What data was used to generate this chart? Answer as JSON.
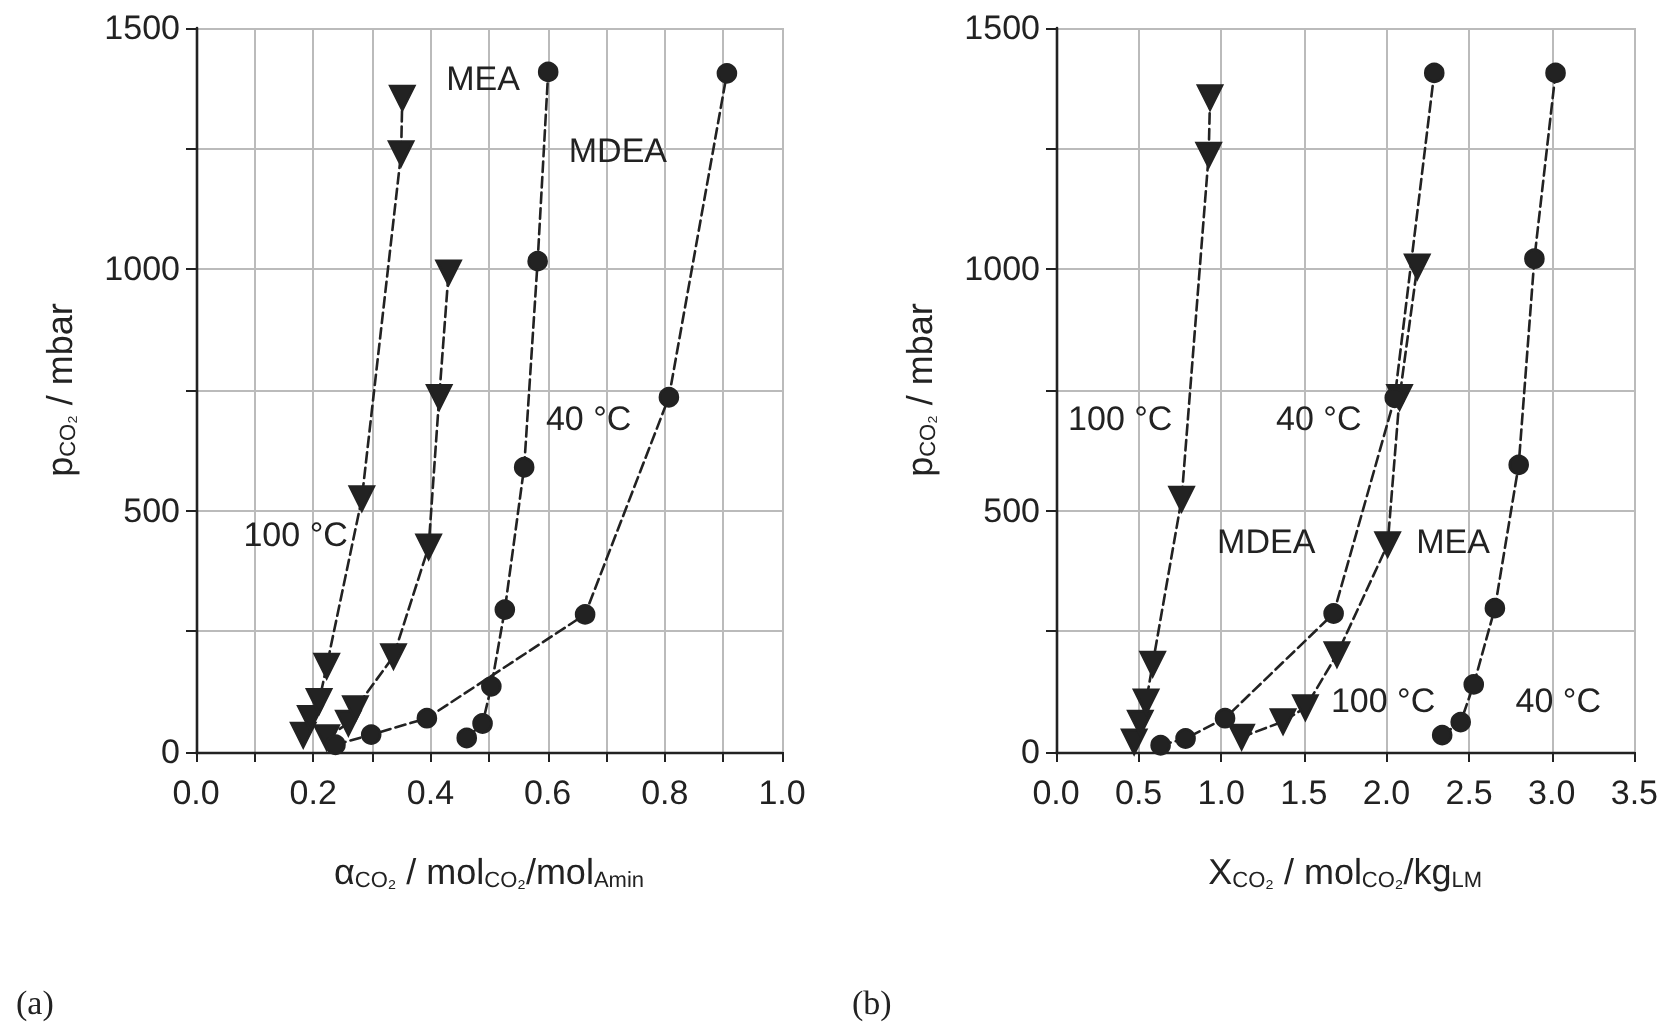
{
  "chart_data": [
    {
      "type": "line",
      "xlabel": "α$_{CO₂}$ / mol$_{CO₂}$/mol$_{Amin}$",
      "ylabel": "p$_{CO₂}$ / mbar",
      "line_style": "dashed",
      "grid": true,
      "xlim": [
        0,
        1
      ],
      "xticks": [
        {
          "value": 0,
          "label": "0.0"
        },
        {
          "value": 0.1,
          "label": null
        },
        {
          "value": 0.2,
          "label": "0.2"
        },
        {
          "value": 0.3,
          "label": null
        },
        {
          "value": 0.4,
          "label": "0.4"
        },
        {
          "value": 0.5,
          "label": null
        },
        {
          "value": 0.6,
          "label": "0.6"
        },
        {
          "value": 0.7,
          "label": null
        },
        {
          "value": 0.8,
          "label": "0.8"
        },
        {
          "value": 0.9,
          "label": null
        },
        {
          "value": 1,
          "label": "1.0"
        }
      ],
      "ylim": [
        0,
        1500
      ],
      "yticks": [
        0,
        {
          "value": 250,
          "label": null
        },
        500,
        {
          "value": 750,
          "label": null
        },
        1000,
        {
          "value": 1250,
          "label": null
        },
        1500
      ],
      "series": [
        {
          "color": "#222222",
          "marker": "triangle",
          "x": [
            0.183,
            0.195,
            0.21,
            0.223,
            0.283,
            0.35,
            0.352
          ],
          "values": [
            35,
            70,
            105,
            178,
            525,
            1240,
            1355
          ]
        },
        {
          "color": "#222222",
          "marker": "triangle",
          "x": [
            0.223,
            0.26,
            0.272,
            0.337,
            0.397,
            0.415,
            0.431
          ],
          "values": [
            30,
            60,
            90,
            198,
            425,
            735,
            993
          ]
        },
        {
          "color": "#222222",
          "marker": "circle",
          "x": [
            0.462,
            0.489,
            0.504,
            0.527,
            0.56,
            0.583,
            0.601
          ],
          "values": [
            29,
            59,
            136,
            295,
            590,
            1017,
            1409
          ]
        },
        {
          "color": "#222222",
          "marker": "circle",
          "x": [
            0.238,
            0.299,
            0.394,
            0.664,
            0.807,
            0.906
          ],
          "values": [
            15,
            36,
            70,
            285,
            735,
            1406
          ]
        }
      ],
      "annotations": [
        "MEA",
        "MDEA",
        "40 °C",
        "100 °C",
        "(a)"
      ]
    },
    {
      "type": "line",
      "xlabel": "X$_{CO₂}$ / mol$_{CO₂}$/kg$_{LM}$",
      "ylabel": "p$_{CO₂}$ / mbar",
      "line_style": "dashed",
      "grid": true,
      "xlim": [
        0,
        3.5
      ],
      "xticks": [
        {
          "value": 0,
          "label": "0.0"
        },
        0.5,
        {
          "value": 1,
          "label": "1.0"
        },
        1.5,
        {
          "value": 2,
          "label": "2.0"
        },
        2.5,
        {
          "value": 3,
          "label": "3.0"
        },
        3.5
      ],
      "ylim": [
        0,
        1500
      ],
      "yticks": [
        0,
        {
          "value": 250,
          "label": null
        },
        500,
        {
          "value": 750,
          "label": null
        },
        1000,
        {
          "value": 1250,
          "label": null
        },
        1500
      ],
      "series": [
        {
          "color": "#222222",
          "marker": "triangle",
          "x": [
            0.473,
            0.51,
            0.545,
            0.585,
            0.76,
            0.924,
            0.932
          ],
          "values": [
            21,
            60,
            104,
            182,
            524,
            1237,
            1356
          ]
        },
        {
          "color": "#222222",
          "marker": "triangle",
          "x": [
            1.123,
            1.374,
            1.509,
            1.7,
            2.007,
            2.079,
            2.186
          ],
          "values": [
            31,
            63,
            92,
            202,
            430,
            735,
            1005
          ]
        },
        {
          "color": "#222222",
          "marker": "circle",
          "x": [
            2.337,
            2.449,
            2.528,
            2.656,
            2.8,
            2.895,
            3.023
          ],
          "values": [
            35,
            62,
            140,
            298,
            595,
            1022,
            1407
          ]
        },
        {
          "color": "#222222",
          "marker": "circle",
          "x": [
            0.633,
            0.784,
            1.023,
            1.68,
            2.05,
            2.289
          ],
          "values": [
            14,
            28,
            70,
            287,
            734,
            1407
          ]
        }
      ],
      "annotations": [
        "100 °C",
        "40 °C",
        "MDEA",
        "MEA",
        "100 °C",
        "40 °C",
        "(b)"
      ]
    }
  ]
}
